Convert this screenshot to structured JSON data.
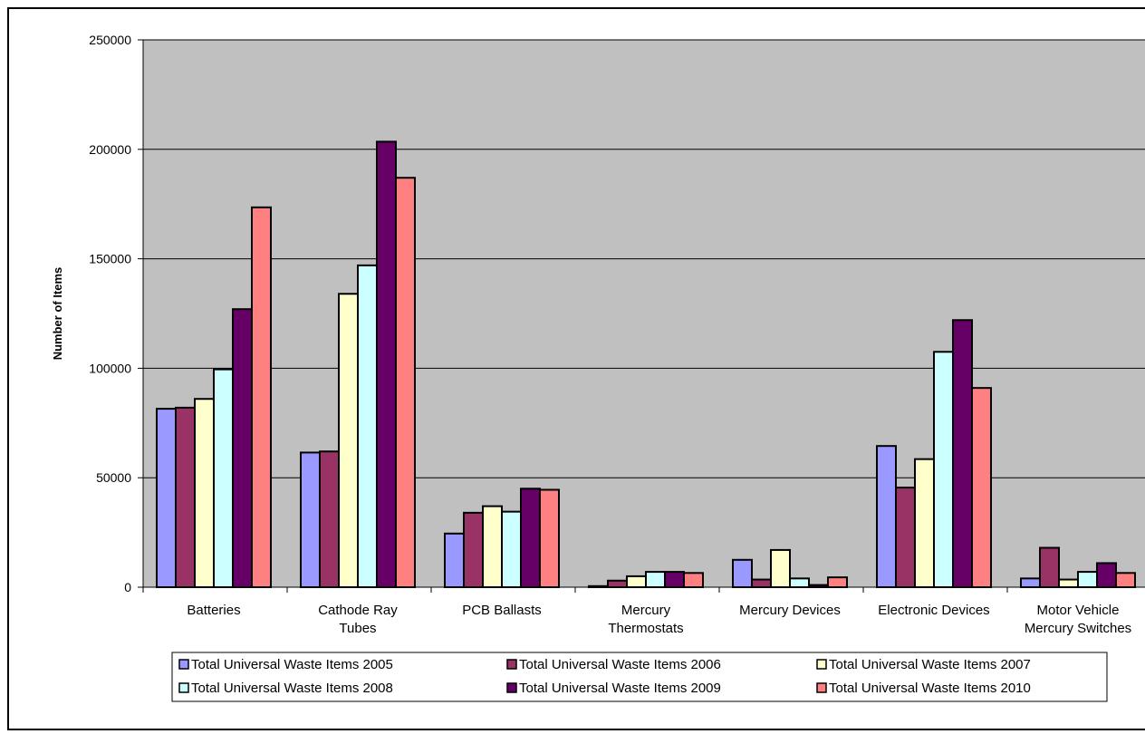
{
  "chart_data": {
    "type": "bar",
    "ylabel": "Number of Items",
    "ylim": [
      0,
      250000
    ],
    "yticks": [
      0,
      50000,
      100000,
      150000,
      200000,
      250000
    ],
    "grid": true,
    "legend_position": "bottom",
    "categories": [
      [
        "Batteries"
      ],
      [
        "Cathode Ray",
        "Tubes"
      ],
      [
        "PCB Ballasts"
      ],
      [
        "Mercury",
        "Thermostats"
      ],
      [
        "Mercury Devices"
      ],
      [
        "Electronic Devices"
      ],
      [
        "Motor Vehicle",
        "Mercury Switches"
      ]
    ],
    "series": [
      {
        "name": "Total Universal Waste Items 2005",
        "color": "#9999ff",
        "values": [
          81500,
          61500,
          24500,
          500,
          12500,
          64500,
          4000
        ]
      },
      {
        "name": "Total Universal Waste Items 2006",
        "color": "#993366",
        "values": [
          82000,
          62000,
          34000,
          3000,
          3500,
          45500,
          18000
        ]
      },
      {
        "name": "Total Universal Waste Items 2007",
        "color": "#ffffcc",
        "values": [
          86000,
          134000,
          37000,
          5000,
          17000,
          58500,
          3500
        ]
      },
      {
        "name": "Total Universal Waste Items 2008",
        "color": "#ccffff",
        "values": [
          99500,
          147000,
          34500,
          7000,
          4000,
          107500,
          7000
        ]
      },
      {
        "name": "Total Universal Waste Items 2009",
        "color": "#660066",
        "values": [
          127000,
          203500,
          45000,
          7000,
          1000,
          122000,
          11000
        ]
      },
      {
        "name": "Total Universal Waste Items 2010",
        "color": "#ff8080",
        "values": [
          173500,
          187000,
          44500,
          6500,
          4500,
          91000,
          6500
        ]
      }
    ],
    "plot_background": "#c0c0c0"
  }
}
